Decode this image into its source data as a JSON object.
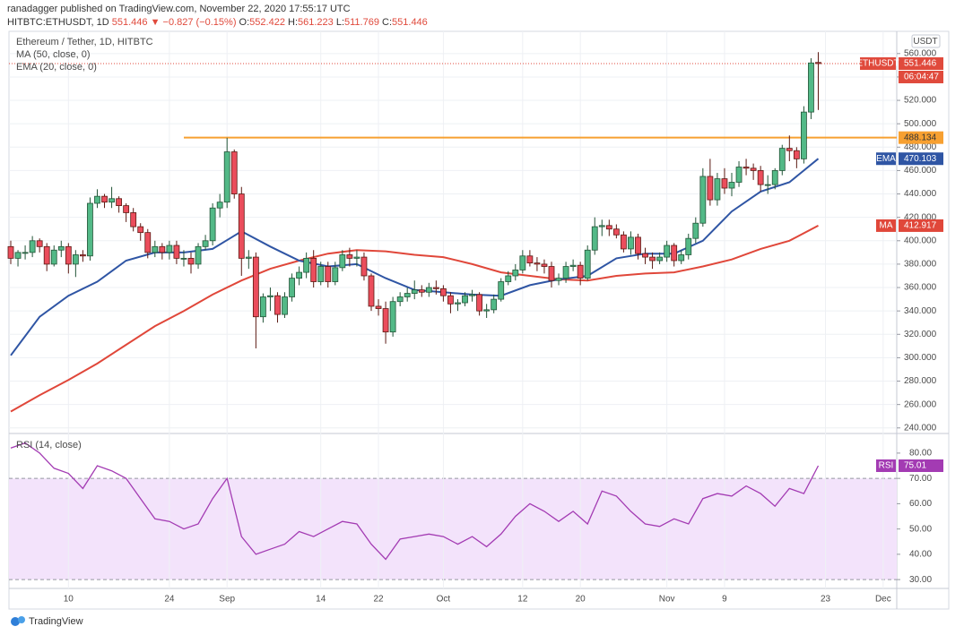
{
  "header": {
    "author_line": "ranadagger published on TradingView.com, November 22, 2020 17:55:17 UTC",
    "symbol": "HITBTC:ETHUSDT, 1D",
    "arrow": "▼",
    "change": "−0.827 (−0.15%)",
    "ohlc_labels": [
      "O:",
      "H:",
      "L:",
      "C:"
    ]
  },
  "brand": "TradingView",
  "chart_data": {
    "type": "candlestick",
    "title": "Ethereum / Tether, 1D, HITBTC",
    "currency": "USDT",
    "x": [
      "Aug 2",
      "Aug 3",
      "Aug 4",
      "Aug 5",
      "Aug 6",
      "Aug 7",
      "Aug 8",
      "Aug 9",
      "Aug 10",
      "Aug 11",
      "Aug 12",
      "Aug 13",
      "Aug 14",
      "Aug 15",
      "Aug 16",
      "Aug 17",
      "Aug 18",
      "Aug 19",
      "Aug 20",
      "Aug 21",
      "Aug 22",
      "Aug 23",
      "Aug 24",
      "Aug 25",
      "Aug 26",
      "Aug 27",
      "Aug 28",
      "Aug 29",
      "Aug 30",
      "Aug 31",
      "Sep 1",
      "Sep 2",
      "Sep 3",
      "Sep 4",
      "Sep 5",
      "Sep 6",
      "Sep 7",
      "Sep 8",
      "Sep 9",
      "Sep 10",
      "Sep 11",
      "Sep 12",
      "Sep 13",
      "Sep 14",
      "Sep 15",
      "Sep 16",
      "Sep 17",
      "Sep 18",
      "Sep 19",
      "Sep 20",
      "Sep 21",
      "Sep 22",
      "Sep 23",
      "Sep 24",
      "Sep 25",
      "Sep 26",
      "Sep 27",
      "Sep 28",
      "Sep 29",
      "Sep 30",
      "Oct 1",
      "Oct 2",
      "Oct 3",
      "Oct 4",
      "Oct 5",
      "Oct 6",
      "Oct 7",
      "Oct 8",
      "Oct 9",
      "Oct 10",
      "Oct 11",
      "Oct 12",
      "Oct 13",
      "Oct 14",
      "Oct 15",
      "Oct 16",
      "Oct 17",
      "Oct 18",
      "Oct 19",
      "Oct 20",
      "Oct 21",
      "Oct 22",
      "Oct 23",
      "Oct 24",
      "Oct 25",
      "Oct 26",
      "Oct 27",
      "Oct 28",
      "Oct 29",
      "Oct 30",
      "Oct 31",
      "Nov 1",
      "Nov 2",
      "Nov 3",
      "Nov 4",
      "Nov 5",
      "Nov 6",
      "Nov 7",
      "Nov 8",
      "Nov 9",
      "Nov 10",
      "Nov 11",
      "Nov 12",
      "Nov 13",
      "Nov 14",
      "Nov 15",
      "Nov 16",
      "Nov 17",
      "Nov 18",
      "Nov 19",
      "Nov 20",
      "Nov 21",
      "Nov 22"
    ],
    "open": [
      395,
      385,
      390,
      390,
      400,
      395,
      380,
      392,
      395,
      380,
      388,
      387,
      432,
      438,
      433,
      436,
      430,
      424,
      412,
      407,
      390,
      395,
      390,
      396,
      385,
      385,
      380,
      395,
      400,
      428,
      433,
      476,
      440,
      385,
      386,
      335,
      352,
      353,
      337,
      352,
      368,
      373,
      385,
      365,
      378,
      365,
      377,
      388,
      385,
      386,
      370,
      344,
      342,
      322,
      348,
      352,
      355,
      358,
      356,
      360,
      359,
      353,
      346,
      347,
      353,
      354,
      340,
      341,
      350,
      365,
      370,
      375,
      387,
      381,
      380,
      378,
      366,
      368,
      378,
      379,
      368,
      392,
      412,
      413,
      410,
      405,
      393,
      403,
      389,
      386,
      383,
      386,
      396,
      383,
      388,
      402,
      415,
      455,
      435,
      453,
      445,
      450,
      463,
      462,
      460,
      448,
      448,
      460,
      479,
      477,
      470,
      510,
      552.422
    ],
    "high": [
      400,
      392,
      396,
      404,
      402,
      398,
      396,
      400,
      398,
      392,
      392,
      437,
      444,
      440,
      446,
      438,
      432,
      428,
      415,
      410,
      400,
      398,
      400,
      400,
      392,
      390,
      398,
      405,
      432,
      440,
      488,
      478,
      446,
      392,
      390,
      355,
      360,
      356,
      356,
      372,
      378,
      390,
      392,
      382,
      382,
      382,
      392,
      394,
      392,
      390,
      372,
      350,
      348,
      352,
      356,
      360,
      366,
      362,
      364,
      366,
      362,
      356,
      350,
      356,
      358,
      356,
      346,
      354,
      368,
      374,
      380,
      392,
      392,
      386,
      384,
      382,
      372,
      382,
      384,
      382,
      396,
      420,
      418,
      418,
      414,
      408,
      408,
      406,
      394,
      390,
      390,
      400,
      398,
      392,
      406,
      420,
      462,
      470,
      458,
      462,
      458,
      468,
      470,
      466,
      464,
      456,
      462,
      482,
      490,
      480,
      515,
      556,
      561.223
    ],
    "low": [
      380,
      378,
      384,
      386,
      390,
      374,
      378,
      386,
      372,
      369,
      382,
      383,
      428,
      428,
      428,
      424,
      416,
      408,
      400,
      385,
      386,
      384,
      384,
      380,
      378,
      372,
      376,
      392,
      396,
      420,
      428,
      436,
      370,
      376,
      308,
      330,
      340,
      330,
      334,
      348,
      362,
      368,
      360,
      362,
      360,
      362,
      374,
      378,
      378,
      366,
      340,
      336,
      312,
      318,
      344,
      348,
      350,
      352,
      352,
      354,
      348,
      338,
      340,
      344,
      348,
      336,
      334,
      338,
      348,
      362,
      366,
      372,
      378,
      374,
      372,
      360,
      362,
      364,
      374,
      362,
      366,
      388,
      404,
      404,
      402,
      390,
      388,
      384,
      380,
      376,
      380,
      382,
      378,
      380,
      384,
      398,
      412,
      430,
      430,
      440,
      438,
      446,
      456,
      452,
      442,
      440,
      444,
      456,
      468,
      462,
      466,
      504,
      511.769
    ],
    "close": [
      385,
      390,
      390,
      400,
      395,
      380,
      392,
      395,
      380,
      388,
      387,
      432,
      438,
      433,
      436,
      430,
      424,
      412,
      407,
      390,
      395,
      390,
      396,
      385,
      385,
      380,
      395,
      400,
      428,
      433,
      476,
      440,
      385,
      386,
      335,
      352,
      353,
      337,
      352,
      368,
      373,
      385,
      365,
      378,
      365,
      377,
      388,
      385,
      386,
      370,
      344,
      342,
      322,
      348,
      352,
      355,
      358,
      356,
      360,
      359,
      353,
      346,
      347,
      353,
      354,
      340,
      341,
      350,
      365,
      370,
      375,
      387,
      381,
      380,
      378,
      366,
      368,
      378,
      379,
      368,
      392,
      412,
      413,
      410,
      405,
      393,
      403,
      389,
      386,
      383,
      386,
      396,
      383,
      388,
      402,
      415,
      455,
      435,
      453,
      445,
      450,
      463,
      462,
      460,
      448,
      448,
      460,
      479,
      477,
      470,
      510,
      552,
      551.446
    ],
    "up_color": "#53b987",
    "down_color": "#eb4d5c",
    "up_border": "#225437",
    "down_border": "#5b1a13",
    "ylim": [
      236,
      579
    ],
    "yticks": [
      {
        "value": 240,
        "label": "240.000"
      },
      {
        "value": 260,
        "label": "260.000"
      },
      {
        "value": 280,
        "label": "280.000"
      },
      {
        "value": 300,
        "label": "300.000"
      },
      {
        "value": 320,
        "label": "320.000"
      },
      {
        "value": 340,
        "label": "340.000"
      },
      {
        "value": 360,
        "label": "360.000"
      },
      {
        "value": 380,
        "label": "380.000"
      },
      {
        "value": 400,
        "label": "400.000"
      },
      {
        "value": 420,
        "label": "420.000"
      },
      {
        "value": 440,
        "label": "440.000"
      },
      {
        "value": 460,
        "label": "460.000"
      },
      {
        "value": 480,
        "label": "480.000"
      },
      {
        "value": 500,
        "label": "500.000"
      },
      {
        "value": 520,
        "label": "520.000"
      },
      {
        "value": 540,
        "label": "540.000"
      },
      {
        "value": 560,
        "label": "560.000"
      }
    ],
    "xticks": [
      {
        "value": "Aug 10",
        "label": "10"
      },
      {
        "value": "Aug 24",
        "label": "24"
      },
      {
        "value": "Sep 1",
        "label": "Sep"
      },
      {
        "value": "Sep 14",
        "label": "14"
      },
      {
        "value": "Sep 22",
        "label": "22"
      },
      {
        "value": "Oct 1",
        "label": "Oct"
      },
      {
        "value": "Oct 12",
        "label": "12"
      },
      {
        "value": "Oct 20",
        "label": "20"
      },
      {
        "value": "Nov 1",
        "label": "Nov"
      },
      {
        "value": "Nov 9",
        "label": "9"
      },
      {
        "value": "Nov 23",
        "label": "23"
      },
      {
        "value": "Dec 1",
        "label": "Dec"
      }
    ],
    "grid": true,
    "overlays": [
      {
        "name": "MA (50, close, 0)",
        "short": "MA",
        "color": "#e0473a",
        "x": [
          "Aug 2",
          "Aug 6",
          "Aug 10",
          "Aug 14",
          "Aug 18",
          "Aug 22",
          "Aug 26",
          "Aug 30",
          "Sep 3",
          "Sep 7",
          "Sep 11",
          "Sep 15",
          "Sep 19",
          "Sep 23",
          "Sep 27",
          "Oct 1",
          "Oct 5",
          "Oct 9",
          "Oct 13",
          "Oct 17",
          "Oct 21",
          "Oct 25",
          "Oct 29",
          "Nov 2",
          "Nov 6",
          "Nov 10",
          "Nov 14",
          "Nov 18",
          "Nov 22"
        ],
        "values": [
          254,
          268,
          281,
          295,
          311,
          327,
          340,
          354,
          366,
          376,
          383,
          389,
          392,
          391,
          388,
          386,
          380,
          373,
          370,
          367,
          366,
          370,
          372,
          373,
          378,
          384,
          393,
          400,
          412.917
        ]
      },
      {
        "name": "EMA (20, close, 0)",
        "short": "EMA",
        "color": "#2f55a4",
        "x": [
          "Aug 2",
          "Aug 6",
          "Aug 10",
          "Aug 14",
          "Aug 18",
          "Aug 22",
          "Aug 26",
          "Aug 30",
          "Sep 3",
          "Sep 7",
          "Sep 11",
          "Sep 15",
          "Sep 19",
          "Sep 23",
          "Sep 27",
          "Oct 1",
          "Oct 5",
          "Oct 9",
          "Oct 13",
          "Oct 17",
          "Oct 21",
          "Oct 25",
          "Oct 29",
          "Nov 2",
          "Nov 6",
          "Nov 10",
          "Nov 14",
          "Nov 18",
          "Nov 22"
        ],
        "values": [
          302,
          335,
          353,
          365,
          383,
          390,
          390,
          393,
          408,
          395,
          383,
          378,
          380,
          368,
          358,
          356,
          354,
          353,
          362,
          367,
          370,
          385,
          389,
          389,
          400,
          425,
          442,
          450,
          470.103
        ]
      }
    ],
    "level": {
      "value": 488.134,
      "color": "#f7a031"
    },
    "last_badge": {
      "label": "ETHUSDT",
      "countdown": "06:04:47",
      "color": "#e04a3c"
    },
    "rsi": {
      "name": "RSI (14, close)",
      "short": "RSI",
      "color": "#a33bb3",
      "band_color": "#f3e3fb",
      "x": [
        "Aug 2",
        "Aug 4",
        "Aug 6",
        "Aug 8",
        "Aug 10",
        "Aug 12",
        "Aug 14",
        "Aug 16",
        "Aug 18",
        "Aug 20",
        "Aug 22",
        "Aug 24",
        "Aug 26",
        "Aug 28",
        "Aug 30",
        "Sep 1",
        "Sep 3",
        "Sep 5",
        "Sep 7",
        "Sep 9",
        "Sep 11",
        "Sep 13",
        "Sep 15",
        "Sep 17",
        "Sep 19",
        "Sep 21",
        "Sep 23",
        "Sep 25",
        "Sep 27",
        "Sep 29",
        "Oct 1",
        "Oct 3",
        "Oct 5",
        "Oct 7",
        "Oct 9",
        "Oct 11",
        "Oct 13",
        "Oct 15",
        "Oct 17",
        "Oct 19",
        "Oct 21",
        "Oct 23",
        "Oct 25",
        "Oct 27",
        "Oct 29",
        "Oct 31",
        "Nov 2",
        "Nov 4",
        "Nov 6",
        "Nov 8",
        "Nov 10",
        "Nov 12",
        "Nov 14",
        "Nov 16",
        "Nov 18",
        "Nov 20",
        "Nov 22"
      ],
      "values": [
        82,
        84,
        80,
        74,
        72,
        66,
        75,
        73,
        70,
        62,
        54,
        53,
        50,
        52,
        62,
        70,
        47,
        40,
        42,
        44,
        49,
        47,
        50,
        53,
        52,
        44,
        38,
        46,
        47,
        48,
        47,
        44,
        47,
        43,
        48,
        55,
        60,
        57,
        53,
        57,
        52,
        65,
        63,
        57,
        52,
        51,
        54,
        52,
        62,
        64,
        63,
        67,
        64,
        59,
        66,
        64,
        75.01
      ],
      "band": [
        30,
        70
      ],
      "ylim": [
        26.5,
        87.4
      ],
      "yticks": [
        {
          "value": 30,
          "label": "30.00"
        },
        {
          "value": 40,
          "label": "40.00"
        },
        {
          "value": 50,
          "label": "50.00"
        },
        {
          "value": 60,
          "label": "60.00"
        },
        {
          "value": 70,
          "label": "70.00"
        },
        {
          "value": 80,
          "label": "80.00"
        }
      ]
    }
  }
}
